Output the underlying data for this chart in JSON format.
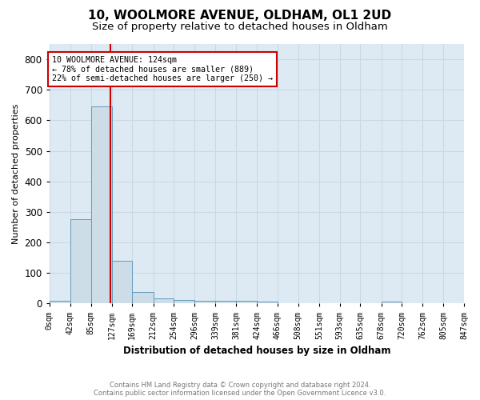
{
  "title": "10, WOOLMORE AVENUE, OLDHAM, OL1 2UD",
  "subtitle": "Size of property relative to detached houses in Oldham",
  "xlabel": "Distribution of detached houses by size in Oldham",
  "ylabel": "Number of detached properties",
  "bar_values": [
    8,
    275,
    645,
    140,
    38,
    18,
    12,
    10,
    10,
    8,
    5,
    0,
    0,
    0,
    0,
    0,
    6,
    0,
    0,
    0
  ],
  "bin_edges": [
    0,
    42,
    85,
    127,
    169,
    212,
    254,
    296,
    339,
    381,
    424,
    466,
    508,
    551,
    593,
    635,
    678,
    720,
    762,
    805,
    847
  ],
  "xtick_labels": [
    "0sqm",
    "42sqm",
    "85sqm",
    "127sqm",
    "169sqm",
    "212sqm",
    "254sqm",
    "296sqm",
    "339sqm",
    "381sqm",
    "424sqm",
    "466sqm",
    "508sqm",
    "551sqm",
    "593sqm",
    "635sqm",
    "678sqm",
    "720sqm",
    "762sqm",
    "805sqm",
    "847sqm"
  ],
  "bar_color": "#ccdde8",
  "bar_edge_color": "#6699bb",
  "property_size": 124,
  "vline_color": "#cc0000",
  "annotation_text": "10 WOOLMORE AVENUE: 124sqm\n← 78% of detached houses are smaller (889)\n22% of semi-detached houses are larger (250) →",
  "annotation_box_color": "#ffffff",
  "annotation_box_edge": "#cc0000",
  "ylim": [
    0,
    850
  ],
  "yticks": [
    0,
    100,
    200,
    300,
    400,
    500,
    600,
    700,
    800
  ],
  "footnote": "Contains HM Land Registry data © Crown copyright and database right 2024.\nContains public sector information licensed under the Open Government Licence v3.0.",
  "grid_color": "#c8d8e4",
  "background_color": "#ddeaf4",
  "title_fontsize": 11,
  "subtitle_fontsize": 9.5
}
